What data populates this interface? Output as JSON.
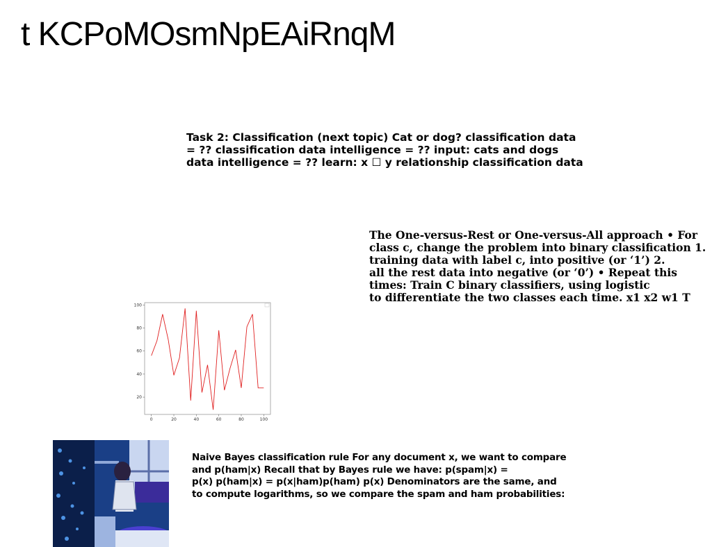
{
  "page": {
    "title": "t KCPoMOsmNpEAiRnqM"
  },
  "blocks": {
    "task": {
      "lines": [
        "Task 2: Classification (next topic) Cat or dog? classification data",
        "= ?? classification data intelligence = ?? input: cats and dogs",
        "data intelligence = ?? learn: x ☐ y relationship classification data"
      ]
    },
    "ovr": {
      "lines": [
        "The One-versus-Rest or One-versus-All approach • For",
        "class c, change the problem into binary classification 1.",
        "training data with label c, into positive (or ‘1’) 2.",
        "all the rest data into negative (or ‘0’) • Repeat this",
        "times: Train C binary classifiers, using logistic",
        "to differentiate the two classes each time. x1 x2 w1 T"
      ]
    },
    "naive_bayes": {
      "lines": [
        "Naive Bayes classification rule For any document x, we want to compare",
        "and p(ham|x) Recall that by Bayes rule we have: p(spam|x) =",
        "p(x) p(ham|x) = p(x|ham)p(ham) p(x) Denominators are the same, and",
        "to compute logarithms, so we compare the spam and ham probabilities:"
      ]
    }
  },
  "chart_data": {
    "type": "line",
    "x": [
      0,
      5,
      10,
      15,
      20,
      25,
      30,
      35,
      40,
      45,
      50,
      55,
      60,
      65,
      70,
      75,
      80,
      85,
      90,
      95,
      100
    ],
    "series": [
      {
        "values": [
          56,
          69,
          92,
          70,
          39,
          54,
          97,
          17,
          95,
          24,
          48,
          9,
          78,
          26,
          45,
          61,
          28,
          81,
          92,
          28,
          28
        ]
      }
    ],
    "xticks": [
      "0",
      "20",
      "40",
      "60",
      "80",
      "100"
    ],
    "yticks": [
      "20",
      "40",
      "60",
      "80",
      "100"
    ],
    "xlim": [
      -6,
      106
    ],
    "ylim": [
      5,
      102
    ],
    "color": "#e02020",
    "grid": false
  },
  "photo": {
    "description_icon": "photo-icon"
  }
}
